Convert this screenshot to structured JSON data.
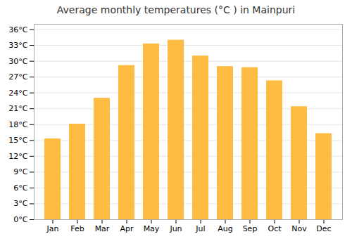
{
  "chart_data": {
    "type": "bar",
    "title": "Average monthly temperatures (°C ) in Mainpuri",
    "categories": [
      "Jan",
      "Feb",
      "Mar",
      "Apr",
      "May",
      "Jun",
      "Jul",
      "Aug",
      "Sep",
      "Oct",
      "Nov",
      "Dec"
    ],
    "values": [
      15.3,
      18.1,
      23.0,
      29.2,
      33.3,
      34.0,
      31.0,
      29.0,
      28.8,
      26.3,
      21.4,
      16.3
    ],
    "color": "#FFBC42",
    "ylim": [
      0,
      37
    ],
    "yticks": [
      {
        "value": 0,
        "label": "0°C"
      },
      {
        "value": 3,
        "label": "3°C"
      },
      {
        "value": 6,
        "label": "6°C"
      },
      {
        "value": 9,
        "label": "9°C"
      },
      {
        "value": 12,
        "label": "12°C"
      },
      {
        "value": 15,
        "label": "15°C"
      },
      {
        "value": 18,
        "label": "18°C"
      },
      {
        "value": 21,
        "label": "21°C"
      },
      {
        "value": 24,
        "label": "24°C"
      },
      {
        "value": 27,
        "label": "27°C"
      },
      {
        "value": 30,
        "label": "30°C"
      },
      {
        "value": 33,
        "label": "33°C"
      },
      {
        "value": 36,
        "label": "36°C"
      }
    ],
    "grid": true
  }
}
